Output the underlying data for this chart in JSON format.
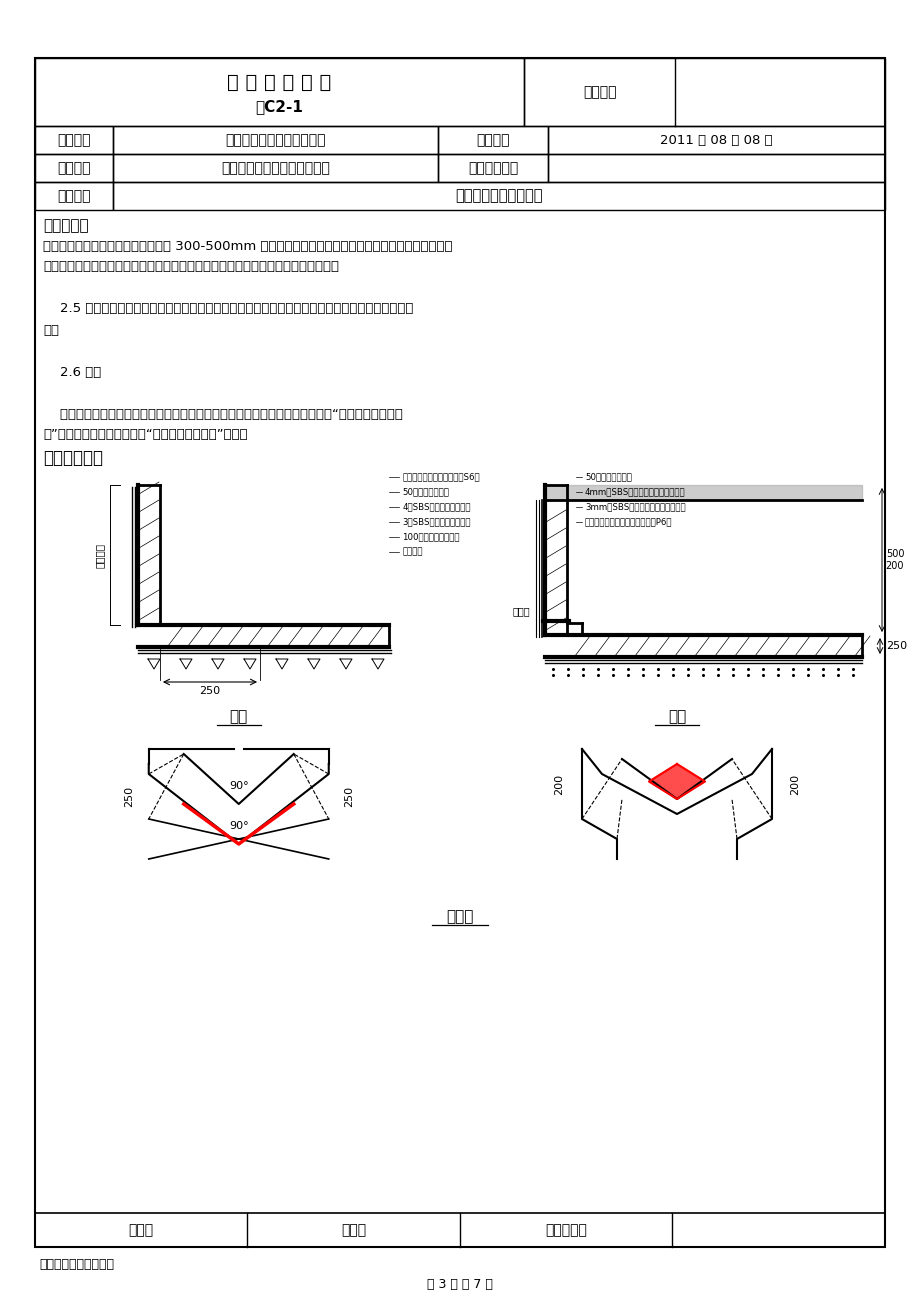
{
  "page_title": "技 术 交 底 记 录",
  "page_subtitle": "表C2-1",
  "ziliao_label": "资料编号",
  "row0_left": "技术交底记录",
  "row1_label": "工程名称",
  "row1_value": "张仪村定向安置房项目北区",
  "row1_key2": "交底日期",
  "row1_val2": "2011 年 08 月 08 日",
  "row2_label": "施工单位",
  "row2_value": "中铁建设集团第五十六项目部",
  "row2_key2": "分项工程名称",
  "row3_label": "交底提要",
  "row3_value": "地下防水施工技术交底",
  "section_title": "交底内容：",
  "content_lines": [
    "层与卷材交接处，噴枪距加热面保持 300-500mm 左右的距离，往返噴烤、观察当卷材沥青刚刚烙化时，",
    "手扶管心两端向前缓缓滚动铺设，要求用力均匀、不窝气，铺设压边宽度应掌握好。",
    "",
    "    2.5 热熔封边：卷材接缝处用噴枪加热，压合至边缘挤出沥青粘牢。卷材末端收头用沥青条热熔封",
    "边。",
    "",
    "    2.6 验收",
    "",
    "    施工队质检员自检合格后报项目质检员验收，合格后报甲方、监理验收，做好“自检、互检、交接",
    "检”三检验收制度，并办理好“隐蔽工程验收记录”手续。"
  ],
  "section2_title": "三、细部构造",
  "left_labels": [
    "锂筋混凝土底板（抗渗标号S6）",
    "50厘混凝土保护层",
    "4厘SBS改性沥青防水卷材",
    "3厘SBS改性沥青防水卷材",
    "100厘细石混凝土垫层",
    "排力土层"
  ],
  "right_labels": [
    "50厘聚苯板保护层",
    "4mm厘SBS聚酯胎改性沥青防水卷材",
    "3mm厘SBS聚酯胎改性沥青防水卷材",
    "抗渗锂筋混凝土外墙（抗渗标号P6）"
  ],
  "right_note": "施工缝",
  "left_dim": "250",
  "left_vert_label": "防水卷端",
  "label_swcha": "甩茂",
  "label_jieча": "接茂",
  "label_fujia": "附加层",
  "footer_labels": [
    "审核人",
    "交底人",
    "接受交底人"
  ],
  "page_num": "第 3 页 共 7 页",
  "footnote": "本表由施工单位填写。",
  "bg_color": "#ffffff"
}
